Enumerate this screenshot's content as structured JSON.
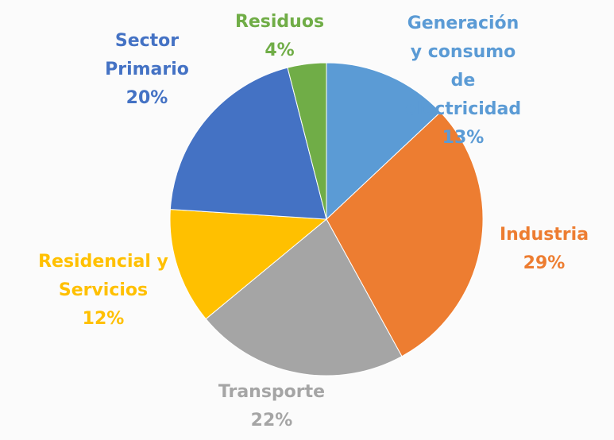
{
  "chart_data": {
    "type": "pie",
    "categories": [
      "Generación y consumo de electricidad",
      "Industria",
      "Transporte",
      "Residencial y Servicios",
      "Sector Primario",
      "Residuos"
    ],
    "values": [
      13,
      29,
      22,
      12,
      20,
      4
    ],
    "value_labels": [
      "13%",
      "29%",
      "22%",
      "12%",
      "20%",
      "4%"
    ],
    "colors": [
      "#5b9bd5",
      "#ed7d31",
      "#a5a5a5",
      "#ffc000",
      "#4472c4",
      "#70ad47"
    ]
  }
}
